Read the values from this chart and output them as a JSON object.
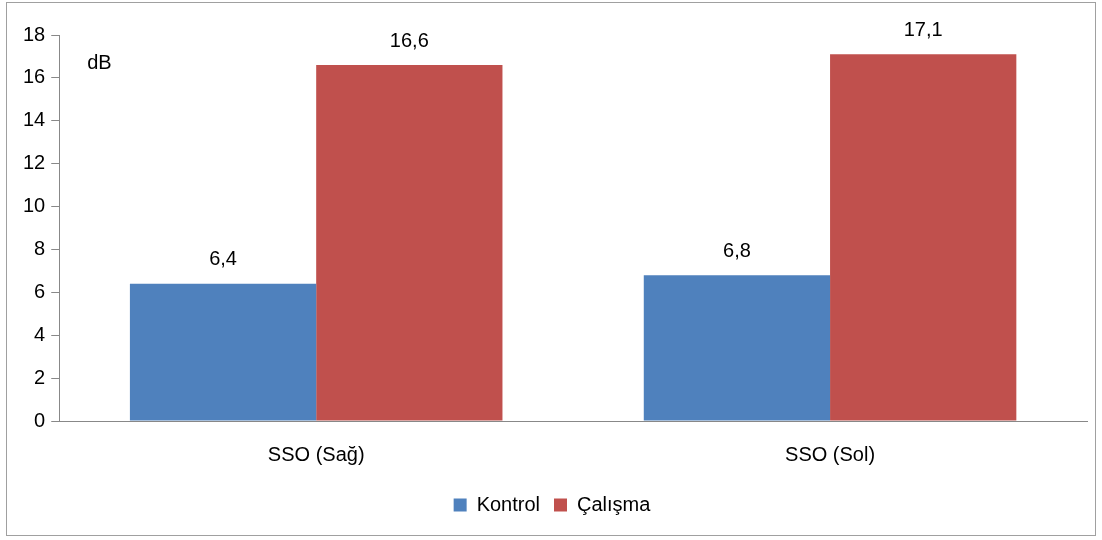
{
  "chart_data": {
    "type": "bar",
    "ylabel": "dB",
    "categories": [
      "SSO (Sağ)",
      "SSO (Sol)"
    ],
    "series": [
      {
        "name": "Kontrol",
        "color": "#4f81bd",
        "values": [
          6.4,
          6.8
        ],
        "value_labels": [
          "6,4",
          "6,8"
        ]
      },
      {
        "name": "Çalışma",
        "color": "#c0504d",
        "values": [
          16.6,
          17.1
        ],
        "value_labels": [
          "16,6",
          "17,1"
        ]
      }
    ],
    "ylim": [
      0,
      18
    ],
    "yticks": [
      0,
      2,
      4,
      6,
      8,
      10,
      12,
      14,
      16,
      18
    ],
    "grid": false,
    "legend": "bottom"
  }
}
